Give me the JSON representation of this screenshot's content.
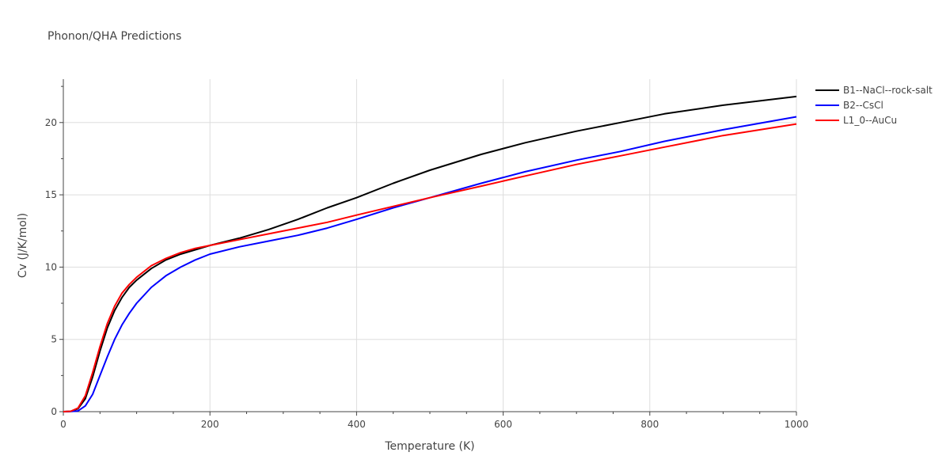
{
  "chart_data": {
    "type": "line",
    "title": "Phonon/QHA Predictions",
    "xlabel": "Temperature (K)",
    "ylabel": "Cv (J/K/mol)",
    "xlim": [
      0,
      1000
    ],
    "ylim": [
      0,
      23
    ],
    "x_ticks": [
      0,
      200,
      400,
      600,
      800,
      1000
    ],
    "y_ticks": [
      0,
      5,
      10,
      15,
      20
    ],
    "grid": true,
    "legend_position": "top-right",
    "series": [
      {
        "name": "B1--NaCl--rock-salt",
        "color": "#000000",
        "x": [
          0,
          10,
          20,
          30,
          40,
          50,
          60,
          70,
          80,
          90,
          100,
          120,
          140,
          160,
          180,
          200,
          240,
          280,
          320,
          360,
          400,
          450,
          500,
          570,
          630,
          700,
          760,
          820,
          900,
          1000
        ],
        "y": [
          0,
          0.02,
          0.2,
          0.9,
          2.4,
          4.2,
          5.8,
          7.0,
          7.9,
          8.6,
          9.1,
          9.9,
          10.5,
          10.9,
          11.2,
          11.5,
          12.0,
          12.6,
          13.3,
          14.1,
          14.8,
          15.8,
          16.7,
          17.8,
          18.6,
          19.4,
          20.0,
          20.6,
          21.2,
          21.8
        ]
      },
      {
        "name": "B2--CsCl",
        "color": "#0000ff",
        "x": [
          0,
          10,
          20,
          30,
          40,
          50,
          60,
          70,
          80,
          90,
          100,
          120,
          140,
          160,
          180,
          200,
          240,
          280,
          320,
          360,
          400,
          450,
          500,
          570,
          630,
          700,
          760,
          820,
          900,
          1000
        ],
        "y": [
          0,
          0.01,
          0.05,
          0.4,
          1.2,
          2.5,
          3.8,
          5.0,
          6.0,
          6.8,
          7.5,
          8.6,
          9.4,
          10.0,
          10.5,
          10.9,
          11.4,
          11.8,
          12.2,
          12.7,
          13.3,
          14.1,
          14.8,
          15.8,
          16.6,
          17.4,
          18.0,
          18.7,
          19.5,
          20.4
        ]
      },
      {
        "name": "L1_0--AuCu",
        "color": "#ff0000",
        "x": [
          0,
          10,
          20,
          30,
          40,
          50,
          60,
          70,
          80,
          90,
          100,
          120,
          140,
          160,
          180,
          200,
          240,
          280,
          320,
          360,
          400,
          450,
          500,
          570,
          630,
          700,
          760,
          820,
          900,
          1000
        ],
        "y": [
          0,
          0.03,
          0.25,
          1.1,
          2.7,
          4.5,
          6.1,
          7.3,
          8.2,
          8.8,
          9.3,
          10.1,
          10.6,
          11.0,
          11.3,
          11.5,
          11.9,
          12.3,
          12.7,
          13.1,
          13.6,
          14.2,
          14.8,
          15.6,
          16.3,
          17.1,
          17.7,
          18.3,
          19.1,
          19.9
        ]
      }
    ]
  }
}
